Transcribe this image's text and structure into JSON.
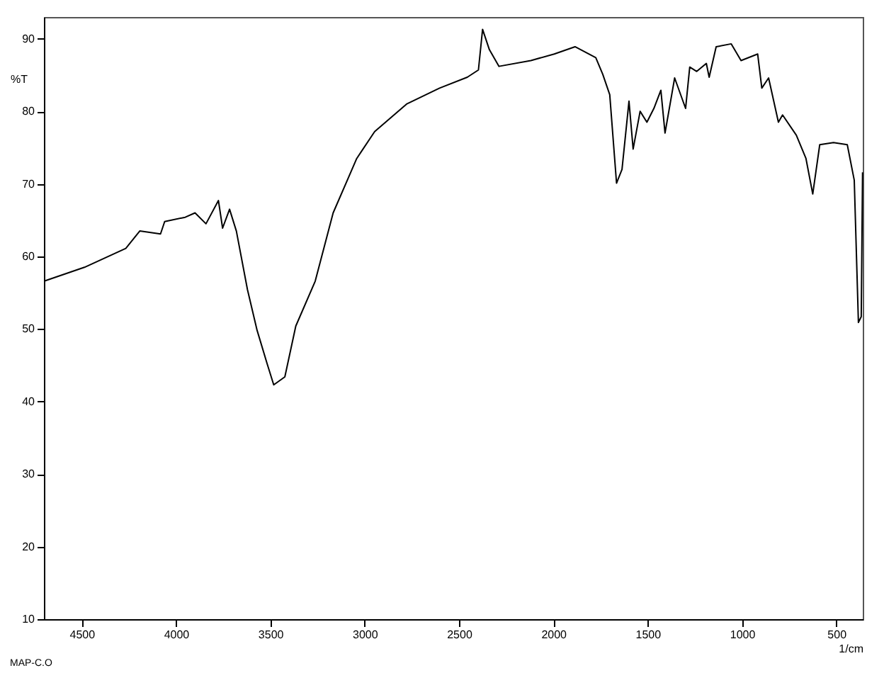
{
  "chart_data": {
    "type": "line",
    "xlabel": "1/cm",
    "ylabel": "%T",
    "annotations": [
      "MAP-C.O"
    ],
    "xlim": [
      4700,
      360
    ],
    "xticks": [
      4500,
      4000,
      3500,
      3000,
      2500,
      2000,
      1500,
      1000,
      500
    ],
    "ylim": [
      10,
      93
    ],
    "yticks": [
      10,
      20,
      30,
      40,
      50,
      60,
      70,
      80,
      90
    ],
    "grid": false,
    "series": [
      {
        "color": "#000000",
        "x": [
          4698,
          4485,
          4266,
          4192,
          4082,
          4060,
          3951,
          3899,
          3841,
          3775,
          3753,
          3716,
          3680,
          3621,
          3570,
          3518,
          3482,
          3423,
          3365,
          3262,
          3167,
          3042,
          2947,
          2778,
          2603,
          2456,
          2397,
          2375,
          2339,
          2288,
          2119,
          1995,
          1885,
          1775,
          1738,
          1701,
          1665,
          1636,
          1599,
          1577,
          1540,
          1504,
          1467,
          1430,
          1408,
          1357,
          1299,
          1277,
          1240,
          1189,
          1174,
          1137,
          1057,
          1005,
          917,
          895,
          859,
          807,
          785,
          712,
          661,
          625,
          588,
          515,
          442,
          405,
          383,
          368,
          361
        ],
        "values": [
          56.6,
          58.5,
          61.1,
          63.5,
          63.1,
          64.8,
          65.4,
          66.0,
          64.5,
          67.7,
          63.9,
          66.5,
          63.5,
          55.4,
          49.8,
          45.3,
          42.3,
          43.4,
          50.4,
          56.6,
          66.0,
          73.5,
          77.2,
          81.0,
          83.2,
          84.7,
          85.7,
          91.3,
          88.5,
          86.2,
          87.0,
          87.9,
          88.9,
          87.4,
          85.1,
          82.3,
          70.1,
          72.0,
          81.4,
          74.8,
          80.0,
          78.5,
          80.4,
          82.9,
          77.0,
          84.6,
          80.4,
          86.1,
          85.5,
          86.6,
          84.7,
          88.9,
          89.3,
          87.0,
          87.9,
          83.2,
          84.6,
          78.5,
          79.5,
          76.7,
          73.5,
          68.6,
          75.4,
          75.7,
          75.4,
          70.5,
          50.9,
          51.7,
          71.6
        ]
      }
    ]
  }
}
